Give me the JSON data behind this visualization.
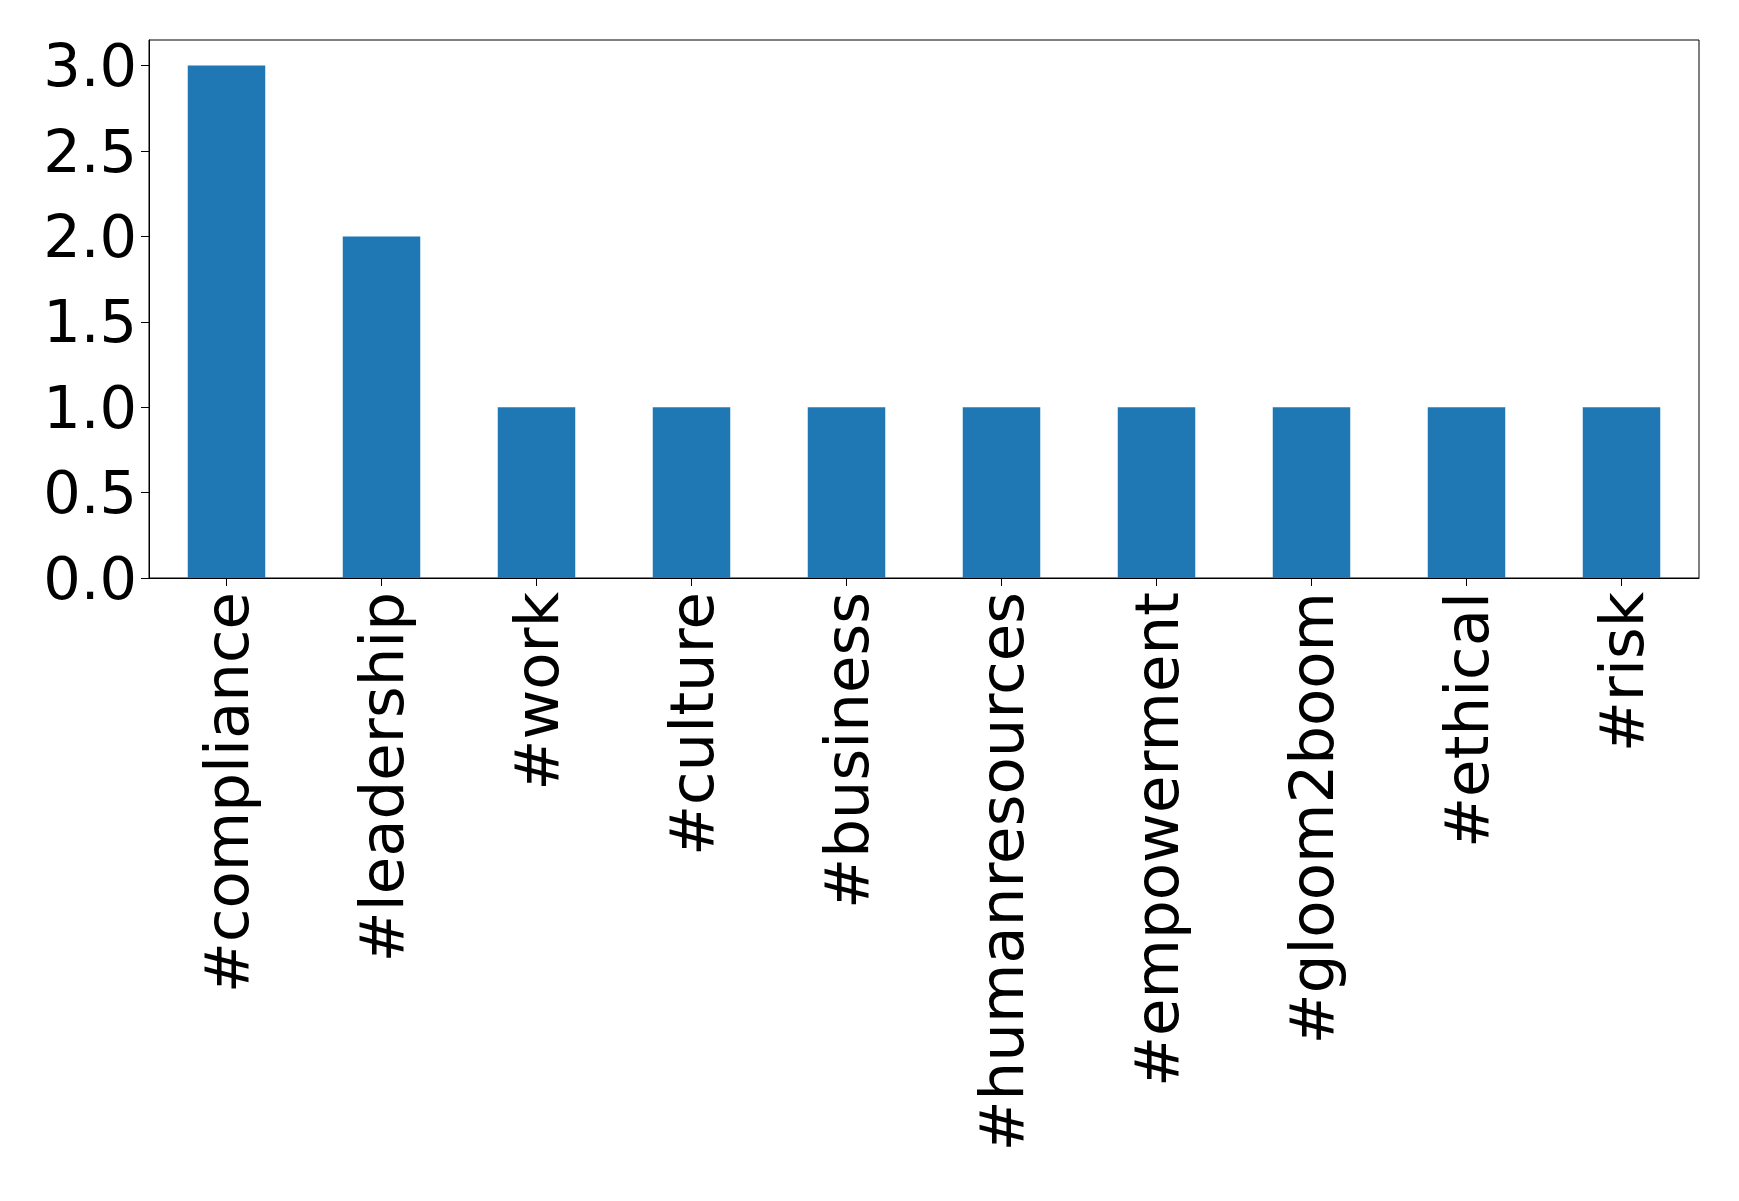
{
  "chart_data": {
    "type": "bar",
    "categories": [
      "#compliance",
      "#leadership",
      "#work",
      "#culture",
      "#business",
      "#humanresources",
      "#empowerment",
      "#gloom2boom",
      "#ethical",
      "#risk"
    ],
    "values": [
      3,
      2,
      1,
      1,
      1,
      1,
      1,
      1,
      1,
      1
    ],
    "color": "#1f77b4",
    "ylim": [
      0,
      3.15
    ],
    "yticks": [
      {
        "value": 0,
        "label": "0.0"
      },
      {
        "value": 0.5,
        "label": "0.5"
      },
      {
        "value": 1,
        "label": "1.0"
      },
      {
        "value": 1.5,
        "label": "1.5"
      },
      {
        "value": 2,
        "label": "2.0"
      },
      {
        "value": 2.5,
        "label": "2.5"
      },
      {
        "value": 3,
        "label": "3.0"
      }
    ],
    "grid": false
  }
}
